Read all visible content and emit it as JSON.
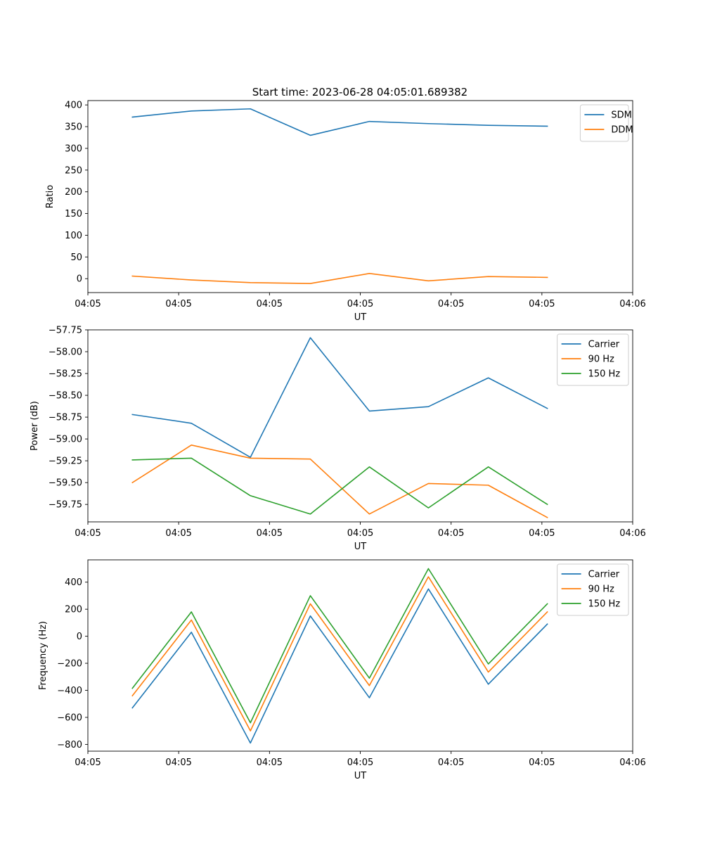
{
  "figure": {
    "title": "Start time: 2023-06-28 04:05:01.689382"
  },
  "chart_data": [
    {
      "type": "line",
      "title": "Start time: 2023-06-28 04:05:01.689382",
      "xlabel": "UT",
      "ylabel": "Ratio",
      "xlim": [
        0,
        6.0
      ],
      "ylim": [
        -32,
        410
      ],
      "x_ticks": [
        0.0,
        1.0,
        2.0,
        3.0,
        4.0,
        5.0,
        6.0
      ],
      "x_tick_labels": [
        "04:05",
        "04:05",
        "04:05",
        "04:05",
        "04:05",
        "04:05",
        "04:06"
      ],
      "y_ticks": [
        0,
        50,
        100,
        150,
        200,
        250,
        300,
        350,
        400
      ],
      "y_tick_labels": [
        "0",
        "50",
        "100",
        "150",
        "200",
        "250",
        "300",
        "350",
        "400"
      ],
      "legend_position": "upper right",
      "grid": false,
      "x": [
        0.49,
        1.14,
        1.79,
        2.45,
        3.1,
        3.75,
        4.41,
        5.06
      ],
      "series": [
        {
          "name": "SDM",
          "color": "#1f77b4",
          "values": [
            372,
            386,
            391,
            330,
            362,
            357,
            353,
            351
          ]
        },
        {
          "name": "DDM",
          "color": "#ff7f0e",
          "values": [
            6,
            -3,
            -9,
            -11,
            12,
            -5,
            5,
            3
          ]
        }
      ]
    },
    {
      "type": "line",
      "xlabel": "UT",
      "ylabel": "Power (dB)",
      "xlim": [
        0,
        6.0
      ],
      "ylim": [
        -59.95,
        -57.75
      ],
      "x_ticks": [
        0.0,
        1.0,
        2.0,
        3.0,
        4.0,
        5.0,
        6.0
      ],
      "x_tick_labels": [
        "04:05",
        "04:05",
        "04:05",
        "04:05",
        "04:05",
        "04:05",
        "04:06"
      ],
      "y_ticks": [
        -59.75,
        -59.5,
        -59.25,
        -59.0,
        -58.75,
        -58.5,
        -58.25,
        -58.0,
        -57.75
      ],
      "y_tick_labels": [
        "−59.75",
        "−59.50",
        "−59.25",
        "−59.00",
        "−58.75",
        "−58.50",
        "−58.25",
        "−58.00",
        "−57.75"
      ],
      "legend_position": "upper right",
      "grid": false,
      "x": [
        0.49,
        1.14,
        1.79,
        2.45,
        3.1,
        3.75,
        4.41,
        5.06
      ],
      "series": [
        {
          "name": "Carrier",
          "color": "#1f77b4",
          "values": [
            -58.72,
            -58.82,
            -59.21,
            -57.84,
            -58.68,
            -58.63,
            -58.3,
            -58.65
          ]
        },
        {
          "name": "90 Hz",
          "color": "#ff7f0e",
          "values": [
            -59.5,
            -59.07,
            -59.22,
            -59.23,
            -59.86,
            -59.51,
            -59.53,
            -59.9
          ]
        },
        {
          "name": "150 Hz",
          "color": "#2ca02c",
          "values": [
            -59.24,
            -59.22,
            -59.65,
            -59.86,
            -59.32,
            -59.79,
            -59.32,
            -59.75
          ]
        }
      ]
    },
    {
      "type": "line",
      "xlabel": "UT",
      "ylabel": "Frequency (Hz)",
      "xlim": [
        0,
        6.0
      ],
      "ylim": [
        -850,
        565
      ],
      "x_ticks": [
        0.0,
        1.0,
        2.0,
        3.0,
        4.0,
        5.0,
        6.0
      ],
      "x_tick_labels": [
        "04:05",
        "04:05",
        "04:05",
        "04:05",
        "04:05",
        "04:05",
        "04:06"
      ],
      "y_ticks": [
        -800,
        -600,
        -400,
        -200,
        0,
        200,
        400
      ],
      "y_tick_labels": [
        "−800",
        "−600",
        "−400",
        "−200",
        "0",
        "200",
        "400"
      ],
      "legend_position": "upper right",
      "grid": false,
      "x": [
        0.49,
        1.14,
        1.79,
        2.45,
        3.1,
        3.75,
        4.41,
        5.06
      ],
      "series": [
        {
          "name": "Carrier",
          "color": "#1f77b4",
          "values": [
            -530,
            30,
            -790,
            150,
            -455,
            350,
            -355,
            90
          ]
        },
        {
          "name": "90 Hz",
          "color": "#ff7f0e",
          "values": [
            -440,
            120,
            -700,
            240,
            -365,
            440,
            -265,
            180
          ]
        },
        {
          "name": "150 Hz",
          "color": "#2ca02c",
          "values": [
            -385,
            180,
            -640,
            300,
            -310,
            500,
            -205,
            240
          ]
        }
      ]
    }
  ]
}
